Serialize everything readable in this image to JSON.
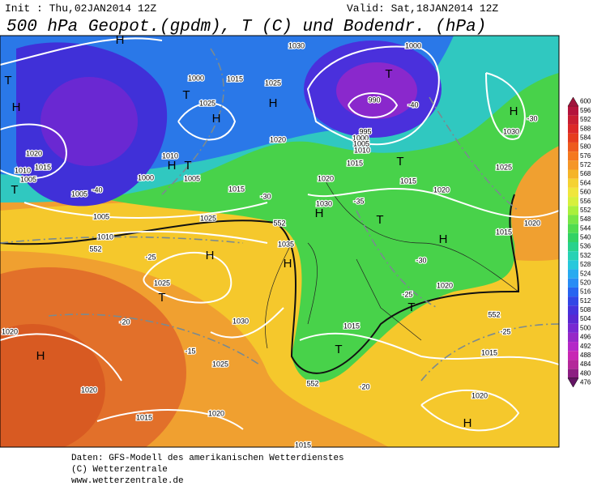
{
  "header": {
    "init": "Init : Thu,02JAN2014 12Z",
    "valid": "Valid: Sat,18JAN2014 12Z",
    "title": "500 hPa Geopot.(gpdm), T (C) und Bodendr. (hPa)"
  },
  "colorbar": {
    "levels": [
      600,
      596,
      592,
      588,
      584,
      580,
      576,
      572,
      568,
      564,
      560,
      556,
      552,
      548,
      544,
      540,
      536,
      532,
      528,
      524,
      520,
      516,
      512,
      508,
      504,
      500,
      496,
      492,
      488,
      484,
      480,
      476
    ],
    "colors": [
      "#a0143c",
      "#b4143c",
      "#c81e32",
      "#dc2828",
      "#e63c1e",
      "#ee5a1e",
      "#f5781e",
      "#f59628",
      "#f5b428",
      "#f5d232",
      "#f0e63c",
      "#d7f03c",
      "#aaf03c",
      "#78e646",
      "#50dc50",
      "#32d264",
      "#28d28c",
      "#28d2b4",
      "#28c8dc",
      "#28aaf0",
      "#288cf5",
      "#2864f0",
      "#3246e6",
      "#4632dc",
      "#5a28d2",
      "#7828d2",
      "#9628c8",
      "#b428c8",
      "#c828b4",
      "#b4289a",
      "#8c1e82",
      "#641464"
    ]
  },
  "map_labels": [
    "H",
    "T",
    "H",
    "T",
    "1000",
    "1015",
    "1025",
    "H",
    "H",
    "1025",
    "1030",
    "1000",
    "T",
    "990",
    "995",
    "1000",
    "1005",
    "1010",
    "H",
    "1030",
    "1020",
    "1015",
    "1010",
    "1005",
    "T",
    "1010",
    "H",
    "T",
    "1005",
    "1000",
    "1015",
    "1020",
    "1020",
    "1015",
    "T",
    "1015",
    "1025",
    "1020",
    "1005",
    "1005",
    "1025",
    "1030",
    "H",
    "T",
    "H",
    "1015",
    "1020",
    "1010",
    "H",
    "1035",
    "H",
    "1025",
    "T",
    "1030",
    "1020",
    "H",
    "1025",
    "1015",
    "T",
    "1020",
    "T",
    "1015",
    "1020",
    "1020",
    "1015",
    "1020",
    "H",
    "1015",
    "-40",
    "-30",
    "-25",
    "-20",
    "-15",
    "-20",
    "-25",
    "-30",
    "-40",
    "-35",
    "-30",
    "-25",
    "552",
    "552",
    "552",
    "552"
  ],
  "footer": [
    "Daten: GFS-Modell des amerikanischen Wetterdienstes",
    "(C) Wetterzentrale",
    "www.wetterzentrale.de"
  ]
}
